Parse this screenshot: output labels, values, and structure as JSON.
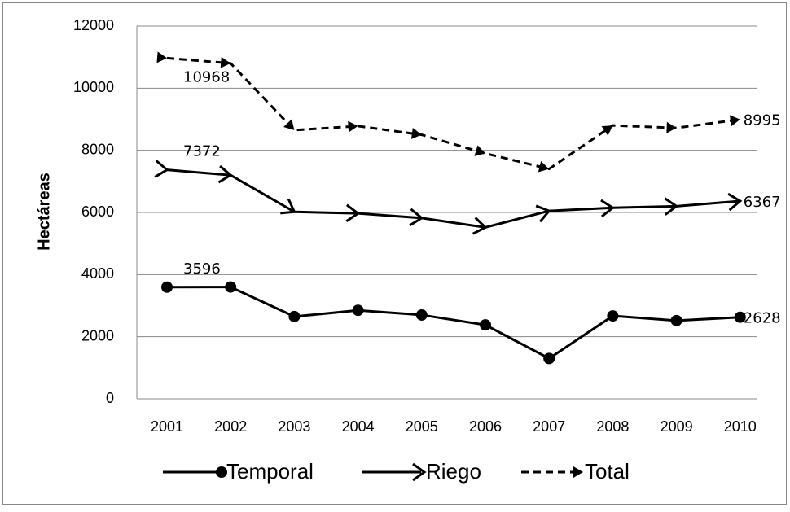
{
  "chart_data": {
    "type": "line",
    "y_label": "Hectáreas",
    "categories": [
      "2001",
      "2002",
      "2003",
      "2004",
      "2005",
      "2006",
      "2007",
      "2008",
      "2009",
      "2010"
    ],
    "series": [
      {
        "name": "Temporal",
        "color": "#000000",
        "marker": "circle",
        "dashed": false,
        "values": [
          3596,
          3600,
          2650,
          2850,
          2700,
          2380,
          1300,
          2670,
          2520,
          2628
        ],
        "value_labels": [
          "3596",
          null,
          null,
          null,
          null,
          null,
          null,
          null,
          null,
          "2628"
        ]
      },
      {
        "name": "Riego",
        "color": "#000000",
        "marker": "open-arrow",
        "dashed": false,
        "values": [
          7372,
          7200,
          6020,
          5970,
          5820,
          5520,
          6050,
          6150,
          6200,
          6367
        ],
        "value_labels": [
          "7372",
          null,
          null,
          null,
          null,
          null,
          null,
          null,
          null,
          "6367"
        ]
      },
      {
        "name": "Total",
        "color": "#000000",
        "marker": "filled-arrow",
        "dashed": true,
        "values": [
          10968,
          10800,
          8650,
          8780,
          8500,
          7900,
          7400,
          8800,
          8720,
          8995
        ],
        "value_labels": [
          "10968",
          null,
          null,
          null,
          null,
          null,
          null,
          null,
          null,
          "8995"
        ]
      }
    ],
    "ylim": [
      0,
      12000
    ],
    "yticks": [
      0,
      2000,
      4000,
      6000,
      8000,
      10000,
      12000
    ],
    "grid": true
  }
}
